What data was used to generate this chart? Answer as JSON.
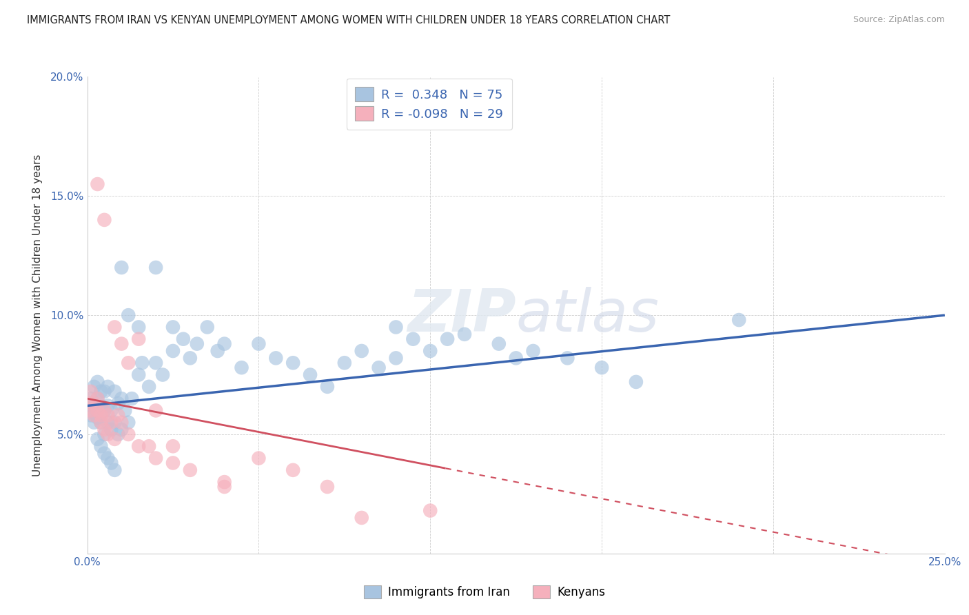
{
  "title": "IMMIGRANTS FROM IRAN VS KENYAN UNEMPLOYMENT AMONG WOMEN WITH CHILDREN UNDER 18 YEARS CORRELATION CHART",
  "source": "Source: ZipAtlas.com",
  "ylabel": "Unemployment Among Women with Children Under 18 years",
  "xlim": [
    0.0,
    0.25
  ],
  "ylim": [
    0.0,
    0.2
  ],
  "iran_R": 0.348,
  "iran_N": 75,
  "kenya_R": -0.098,
  "kenya_N": 29,
  "iran_color": "#a8c4e0",
  "kenya_color": "#f5b0bc",
  "iran_line_color": "#3a65b0",
  "kenya_line_color": "#d05060",
  "legend_label_iran": "Immigrants from Iran",
  "legend_label_kenya": "Kenyans",
  "iran_x": [
    0.0005,
    0.001,
    0.001,
    0.0015,
    0.002,
    0.002,
    0.002,
    0.003,
    0.003,
    0.003,
    0.004,
    0.004,
    0.004,
    0.005,
    0.005,
    0.005,
    0.006,
    0.006,
    0.006,
    0.007,
    0.007,
    0.008,
    0.008,
    0.009,
    0.009,
    0.01,
    0.01,
    0.011,
    0.012,
    0.013,
    0.015,
    0.016,
    0.018,
    0.02,
    0.022,
    0.025,
    0.028,
    0.03,
    0.032,
    0.035,
    0.038,
    0.04,
    0.045,
    0.05,
    0.055,
    0.06,
    0.065,
    0.07,
    0.075,
    0.08,
    0.085,
    0.09,
    0.095,
    0.1,
    0.105,
    0.11,
    0.12,
    0.125,
    0.13,
    0.14,
    0.15,
    0.16,
    0.003,
    0.004,
    0.005,
    0.006,
    0.007,
    0.008,
    0.01,
    0.012,
    0.015,
    0.02,
    0.025,
    0.19,
    0.09
  ],
  "iran_y": [
    0.06,
    0.058,
    0.065,
    0.062,
    0.055,
    0.063,
    0.07,
    0.057,
    0.065,
    0.072,
    0.055,
    0.062,
    0.068,
    0.05,
    0.06,
    0.068,
    0.055,
    0.062,
    0.07,
    0.052,
    0.06,
    0.055,
    0.068,
    0.05,
    0.063,
    0.052,
    0.065,
    0.06,
    0.055,
    0.065,
    0.075,
    0.08,
    0.07,
    0.08,
    0.075,
    0.085,
    0.09,
    0.082,
    0.088,
    0.095,
    0.085,
    0.088,
    0.078,
    0.088,
    0.082,
    0.08,
    0.075,
    0.07,
    0.08,
    0.085,
    0.078,
    0.082,
    0.09,
    0.085,
    0.09,
    0.092,
    0.088,
    0.082,
    0.085,
    0.082,
    0.078,
    0.072,
    0.048,
    0.045,
    0.042,
    0.04,
    0.038,
    0.035,
    0.12,
    0.1,
    0.095,
    0.12,
    0.095,
    0.098,
    0.095
  ],
  "kenya_x": [
    0.0005,
    0.001,
    0.001,
    0.002,
    0.002,
    0.003,
    0.003,
    0.004,
    0.004,
    0.005,
    0.005,
    0.006,
    0.006,
    0.007,
    0.008,
    0.009,
    0.01,
    0.012,
    0.015,
    0.018,
    0.02,
    0.025,
    0.03,
    0.04,
    0.05,
    0.06,
    0.07,
    0.1,
    0.08
  ],
  "kenya_y": [
    0.063,
    0.06,
    0.068,
    0.063,
    0.058,
    0.06,
    0.065,
    0.058,
    0.055,
    0.06,
    0.052,
    0.058,
    0.05,
    0.055,
    0.048,
    0.058,
    0.055,
    0.05,
    0.045,
    0.045,
    0.04,
    0.038,
    0.035,
    0.028,
    0.04,
    0.035,
    0.028,
    0.018,
    0.015
  ],
  "kenya_outlier_x": [
    0.003,
    0.005,
    0.008,
    0.01,
    0.012,
    0.015,
    0.02,
    0.025,
    0.04
  ],
  "kenya_outlier_y": [
    0.155,
    0.14,
    0.095,
    0.088,
    0.08,
    0.09,
    0.06,
    0.045,
    0.03
  ]
}
